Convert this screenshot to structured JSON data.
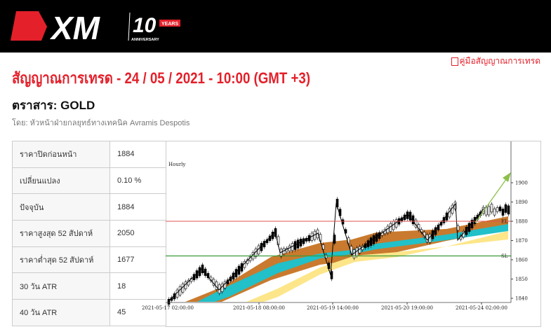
{
  "brand": {
    "logo_text": "XM",
    "badge": "10",
    "badge_years": "YEARS",
    "badge_sub": "ANNIVERSARY"
  },
  "header": {
    "title": "สัญญาณการเทรด - 24 / 05 / 2021 - 10:00 (GMT +3)",
    "guide_link": "คู่มือสัญญาณการเทรด",
    "instrument": "ตราสาร: GOLD",
    "author": "โดย: หัวหน้าฝ่ายกลยุทธ์ทางเทคนิค Avramis Despotis"
  },
  "stats": [
    {
      "label": "ราคาปิดก่อนหน้า",
      "value": "1884"
    },
    {
      "label": "เปลี่ยนแปลง",
      "value": "0.10 %"
    },
    {
      "label": "ปัจจุบัน",
      "value": "1884"
    },
    {
      "label": "ราคาสูงสุด 52 สัปดาห์",
      "value": "2050"
    },
    {
      "label": "ราคาต่ำสุด 52 สัปดาห์",
      "value": "1677"
    },
    {
      "label": "30 วัน ATR",
      "value": "18"
    },
    {
      "label": "40 วัน ATR",
      "value": "45"
    }
  ],
  "chart": {
    "timeframe": "Hourly",
    "y_ticks": [
      "1900",
      "1890",
      "1880",
      "1870",
      "1860",
      "1850",
      "1840"
    ],
    "x_ticks": [
      "2021-05-17 02:00:00",
      "2021-05-18 08:00:00",
      "2021-05-19 14:00:00",
      "2021-05-20 19:00:00",
      "2021-05-24 02:00:00"
    ],
    "entry_label": "EL",
    "entry_level": 1880,
    "stop_label": "SL",
    "stop_level": 1862,
    "colors": {
      "entry": "#e05050",
      "stop": "#3a9a3a",
      "arrow": "#8cc04a",
      "band_outer": "#c97a2e",
      "band_inner": "#22c0c8",
      "band_slow": "#fde68a"
    }
  }
}
